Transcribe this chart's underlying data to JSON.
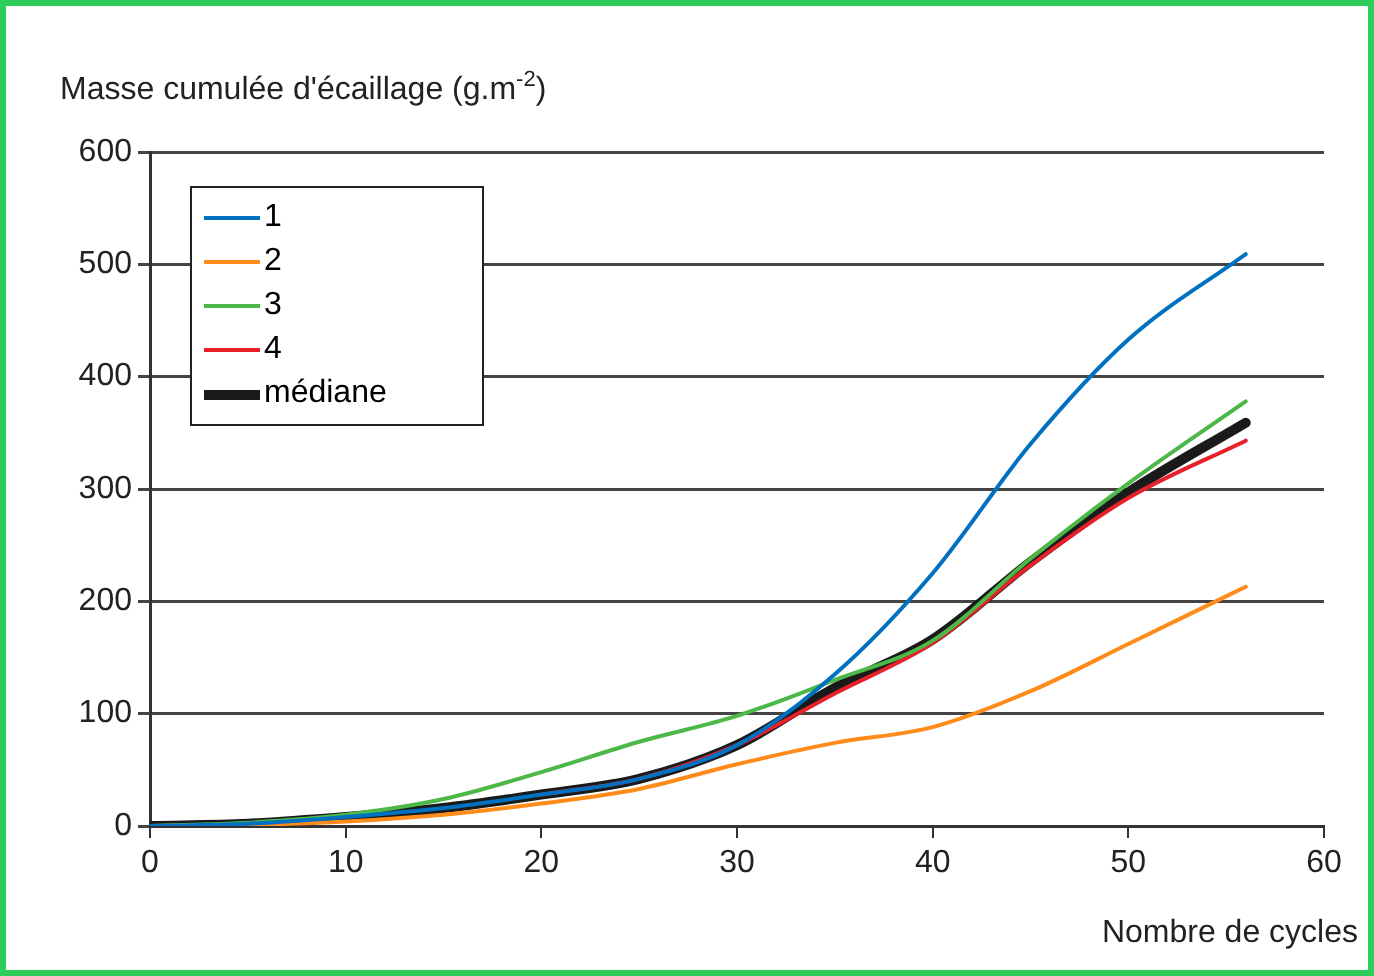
{
  "chart_data": {
    "type": "line",
    "ylabel": "Masse cumulée d'écaillage (g.m$^{-2}$)",
    "xlabel": "Nombre de cycles",
    "x": [
      0,
      5,
      10,
      15,
      20,
      25,
      30,
      35,
      40,
      45,
      50,
      56
    ],
    "series": [
      {
        "name": "1",
        "color": "#0070c0",
        "values": [
          0,
          2,
          8,
          16,
          28,
          42,
          72,
          135,
          225,
          340,
          433,
          509
        ]
      },
      {
        "name": "2",
        "color": "#ff8c1a",
        "values": [
          0,
          1,
          4,
          10,
          20,
          33,
          55,
          74,
          88,
          120,
          162,
          213
        ]
      },
      {
        "name": "3",
        "color": "#4cb848",
        "values": [
          0,
          3,
          10,
          24,
          48,
          75,
          98,
          130,
          165,
          238,
          305,
          378
        ]
      },
      {
        "name": "4",
        "color": "#e8202a",
        "values": [
          null,
          null,
          null,
          null,
          28,
          42,
          72,
          118,
          163,
          232,
          292,
          343
        ]
      },
      {
        "name": "médiane",
        "color": "#1a1a1a",
        "values": [
          0,
          2,
          8,
          16,
          28,
          42,
          72,
          123,
          166,
          235,
          297,
          359
        ]
      }
    ],
    "xlim": [
      0,
      60
    ],
    "xticks": [
      0,
      10,
      20,
      30,
      40,
      50,
      60
    ],
    "ylim": [
      0,
      600
    ],
    "yticks": [
      0,
      100,
      200,
      300,
      400,
      500,
      600
    ],
    "grid": "y",
    "legend": "top left",
    "marker": "none",
    "line_style": "solid"
  }
}
